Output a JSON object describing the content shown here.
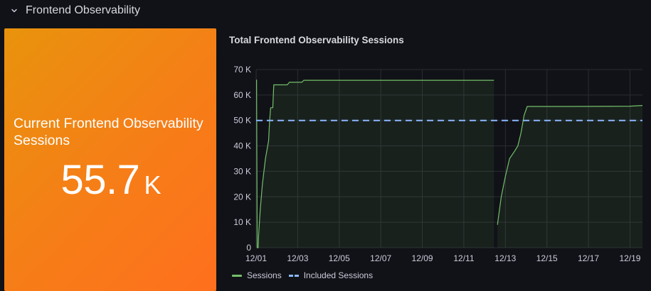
{
  "row": {
    "title": "Frontend Observability",
    "icon": "chevron-down-icon"
  },
  "stat": {
    "title": "Current Frontend Observability Sessions",
    "value": "55.7",
    "unit": "K",
    "colors": {
      "from": "#e8930c",
      "to": "#ff6f1d",
      "text": "#ffffff"
    }
  },
  "chart": {
    "title": "Total Frontend Observability Sessions",
    "colors": {
      "sessions": "#73bf69",
      "included": "#8ab8ff",
      "grid": "#2a2c33",
      "axis": "#ccccdc"
    }
  },
  "chart_data": {
    "type": "line",
    "title": "Total Frontend Observability Sessions",
    "xlabel": "",
    "ylabel": "",
    "ylim": [
      0,
      70000
    ],
    "yticks": [
      {
        "value": 0,
        "label": "0"
      },
      {
        "value": 10000,
        "label": "10 K"
      },
      {
        "value": 20000,
        "label": "20 K"
      },
      {
        "value": 30000,
        "label": "30 K"
      },
      {
        "value": 40000,
        "label": "40 K"
      },
      {
        "value": 50000,
        "label": "50 K"
      },
      {
        "value": 60000,
        "label": "60 K"
      },
      {
        "value": 70000,
        "label": "70 K"
      }
    ],
    "xlim": [
      0,
      18.6
    ],
    "xticks": [
      {
        "value": 0,
        "label": "12/01"
      },
      {
        "value": 2,
        "label": "12/03"
      },
      {
        "value": 4,
        "label": "12/05"
      },
      {
        "value": 6,
        "label": "12/07"
      },
      {
        "value": 8,
        "label": "12/09"
      },
      {
        "value": 10,
        "label": "12/11"
      },
      {
        "value": 12,
        "label": "12/13"
      },
      {
        "value": 14,
        "label": "12/15"
      },
      {
        "value": 16,
        "label": "12/17"
      },
      {
        "value": 18,
        "label": "12/19"
      }
    ],
    "series": [
      {
        "name": "Sessions",
        "style": "solid-fill",
        "segments": [
          [
            [
              0.02,
              66000
            ],
            [
              0.05,
              0
            ],
            [
              0.1,
              0
            ],
            [
              0.12,
              5000
            ],
            [
              0.2,
              15000
            ],
            [
              0.3,
              25000
            ],
            [
              0.45,
              35000
            ],
            [
              0.6,
              42000
            ],
            [
              0.65,
              50000
            ],
            [
              0.7,
              55000
            ],
            [
              0.8,
              55000
            ],
            [
              0.85,
              64000
            ],
            [
              1.5,
              64000
            ],
            [
              1.6,
              65000
            ],
            [
              2.2,
              65000
            ],
            [
              2.3,
              65800
            ],
            [
              11.45,
              65800
            ]
          ],
          [
            [
              11.62,
              9000
            ],
            [
              11.65,
              11000
            ],
            [
              11.8,
              20000
            ],
            [
              12.0,
              28000
            ],
            [
              12.2,
              35000
            ],
            [
              12.45,
              38000
            ],
            [
              12.6,
              40000
            ],
            [
              12.75,
              45000
            ],
            [
              12.9,
              52000
            ],
            [
              13.05,
              55500
            ],
            [
              15.0,
              55500
            ],
            [
              18.0,
              55600
            ],
            [
              18.6,
              55900
            ]
          ]
        ]
      },
      {
        "name": "Included Sessions",
        "style": "dashed",
        "segments": [
          [
            [
              0,
              50000
            ],
            [
              18.6,
              50000
            ]
          ]
        ]
      }
    ]
  }
}
